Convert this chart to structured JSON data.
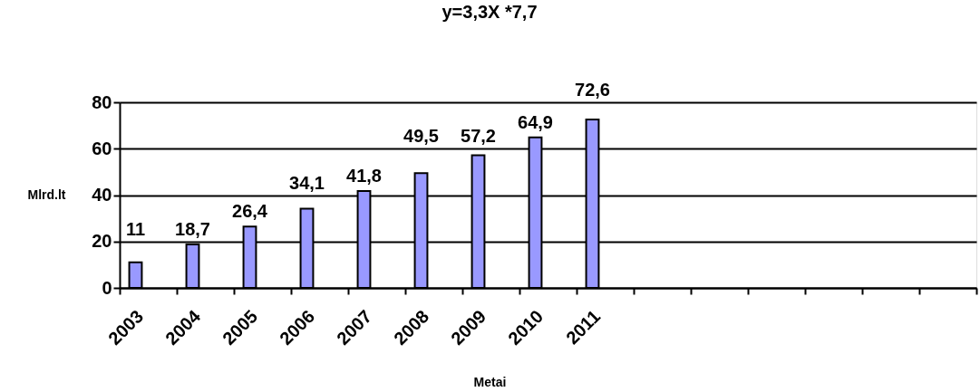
{
  "chart_data": {
    "type": "bar",
    "title": "y=3,3X *7,7",
    "xlabel": "Metai",
    "ylabel": "Mlrd.lt",
    "categories": [
      "2003",
      "2004",
      "2005",
      "2006",
      "2007",
      "2008",
      "2009",
      "2010",
      "2011",
      null,
      null,
      null,
      null,
      null,
      null
    ],
    "values": [
      11,
      18.7,
      26.4,
      34.1,
      41.8,
      49.5,
      57.2,
      64.9,
      72.6,
      null,
      null,
      null,
      null,
      null,
      null
    ],
    "value_labels": [
      "11",
      "18,7",
      "26,4",
      "34,1",
      "41,8",
      "49,5",
      "57,2",
      "64,9",
      "72,6",
      null,
      null,
      null,
      null,
      null,
      null
    ],
    "color": "#9999ff",
    "ylim": [
      0,
      80
    ],
    "yticks": [
      0,
      20,
      40,
      60,
      80
    ],
    "grid": "y"
  }
}
